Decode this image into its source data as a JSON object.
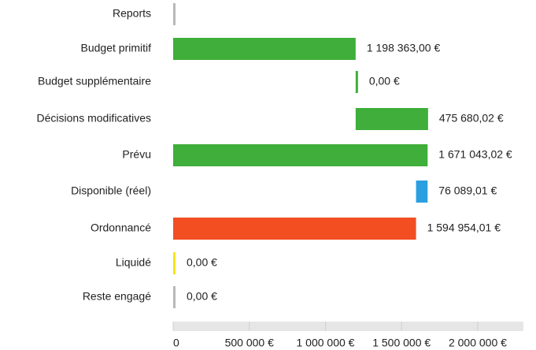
{
  "chart_data": {
    "type": "waterfall-bar",
    "categories": [
      "Reports",
      "Budget primitif",
      "Budget supplémentaire",
      "Décisions modificatives",
      "Prévu",
      "Disponible (réel)",
      "Ordonnancé",
      "Liquidé",
      "Reste engagé"
    ],
    "values": [
      0,
      1198363.0,
      0,
      475680.02,
      1671043.02,
      76089.01,
      1594954.01,
      0,
      0
    ],
    "value_labels": [
      null,
      "1 198 363,00 €",
      "0,00 €",
      "475 680,02 €",
      "1 671 043,02 €",
      "76 089,01 €",
      "1 594 954,01 €",
      "0,00 €",
      "0,00 €"
    ],
    "colors": [
      "#b8b8b8",
      "#3fae3a",
      "#3fae3a",
      "#3fae3a",
      "#3fae3a",
      "#2b9fe0",
      "#f24e22",
      "#f3e61a",
      "#b8b8b8"
    ],
    "xlim": [
      0,
      2300000
    ],
    "xticks": [
      0,
      {
        "value": 500000,
        "label": "500 000 €"
      },
      {
        "value": 1000000,
        "label": "1 000 000 €"
      },
      {
        "value": 1500000,
        "label": "1 500 000 €"
      },
      {
        "value": 2000000,
        "label": "2 000 000 €"
      }
    ]
  }
}
